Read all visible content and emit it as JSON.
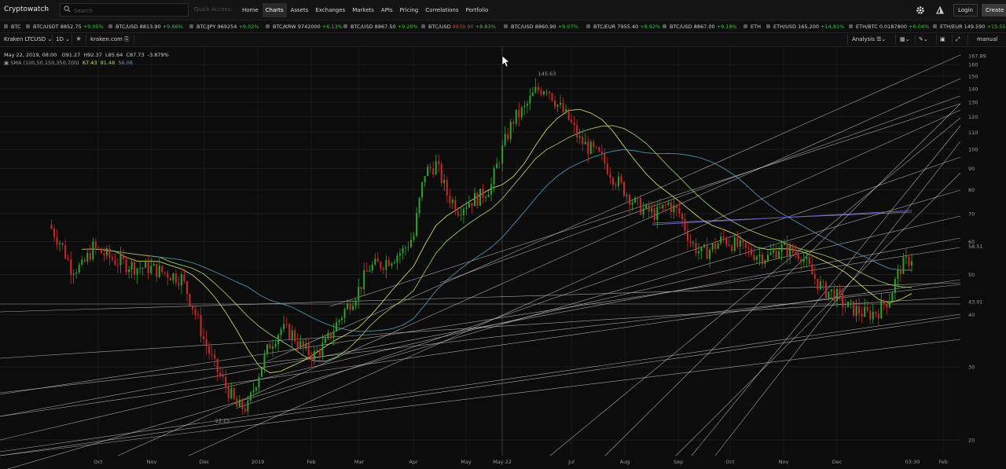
{
  "header": {
    "brand": "Cryptowatch",
    "search_placeholder": "Search",
    "quick_access_label": "Quick Access:",
    "nav": [
      "Home",
      "Charts",
      "Assets",
      "Exchanges",
      "Markets",
      "APIs",
      "Pricing",
      "Correlations",
      "Portfolio"
    ],
    "active_nav": "Charts",
    "login_label": "Login",
    "create_label": "Create"
  },
  "ticker": [
    {
      "pair": "BTC",
      "price": "",
      "change": "",
      "dir": "none"
    },
    {
      "pair": "BTC/USDT",
      "price": "8852.75",
      "change": "+9.05%",
      "dir": "up"
    },
    {
      "pair": "BTC/USD",
      "price": "8813.90",
      "change": "+9.66%",
      "dir": "up"
    },
    {
      "pair": "BTC/JPY",
      "price": "969254",
      "change": "+9.02%",
      "dir": "up"
    },
    {
      "pair": "BTC/KRW",
      "price": "9742000",
      "change": "+6.13%",
      "dir": "up"
    },
    {
      "pair": "BTC/USD",
      "price": "8867.50",
      "change": "+9.20%",
      "dir": "up"
    },
    {
      "pair": "BTC/USD",
      "price": "8839.90",
      "change": "+8.83%",
      "dir": "up",
      "price_dir": "down"
    },
    {
      "pair": "BTC/USD",
      "price": "8860.90",
      "change": "+9.07%",
      "dir": "up"
    },
    {
      "pair": "BTC/EUR",
      "price": "7955.40",
      "change": "+8.92%",
      "dir": "up"
    },
    {
      "pair": "BTC/USD",
      "price": "8867.00",
      "change": "+9.18%",
      "dir": "up"
    },
    {
      "pair": "ETH",
      "price": "",
      "change": "",
      "dir": "none"
    },
    {
      "pair": "ETH/USD",
      "price": "165.200",
      "change": "+14.81%",
      "dir": "up"
    },
    {
      "pair": "ETH/BTC",
      "price": "0.0187800",
      "change": "+6.04%",
      "dir": "up"
    },
    {
      "pair": "ETH/EUR",
      "price": "149.590",
      "change": "+15.55%",
      "dir": "up"
    }
  ],
  "chart_toolbar": {
    "market": "Kraken LTCUSD",
    "period": "1D",
    "exchange_link": "kraken.com",
    "analysis_label": "Analysis",
    "scale_mode": "manual"
  },
  "legend": {
    "date": "May 22, 2019, 08:00",
    "open": "O91.27",
    "high": "H92.37",
    "low": "L85.64",
    "close": "C87.73",
    "change": "-3.879%",
    "sma_label": "SMA (100,50,150,350,700)",
    "sma_values": [
      "67.43",
      "81.48",
      "56.06"
    ]
  },
  "colors": {
    "up_candle": "#2fa02f",
    "down_candle": "#c62a2a",
    "sma_yellow": "#e1e36c",
    "sma_green": "#a7d86c",
    "sma_blue": "#4f9fbe",
    "trendline": "#d8d8d8",
    "hline_purple": "#6a5acd"
  },
  "chart_data": {
    "type": "candlestick",
    "pair": "LTC/USD",
    "exchange": "Kraken",
    "interval": "1D",
    "scale": "log",
    "y_ticks": [
      20,
      30,
      40,
      50,
      60,
      70,
      80,
      90,
      100,
      110,
      120,
      130,
      140,
      150,
      160
    ],
    "x_ticks": [
      "Oct",
      "Nov",
      "Dec",
      "2019",
      "Feb",
      "Mar",
      "Apr",
      "May",
      "Jul",
      "Aug",
      "Sep",
      "Oct",
      "Nov",
      "Dec",
      "Feb"
    ],
    "price_labels": [
      "167.89",
      "58.51",
      "43.01"
    ],
    "crosshair_label": "May 22",
    "time_label": "03:30",
    "annotations": [
      {
        "text": "145.63",
        "value": 145.63
      },
      {
        "text": "22.25",
        "value": 22.25
      }
    ],
    "grid": true,
    "legend_position": "top-left",
    "series": [
      {
        "name": "LTCUSD candles",
        "approx_closes": [
          66,
          60,
          52,
          52,
          58,
          56,
          54,
          53,
          52,
          52,
          51,
          50,
          49,
          42,
          35,
          30,
          27,
          24,
          24,
          29,
          34,
          37,
          36,
          33,
          32,
          34,
          38,
          42,
          46,
          52,
          53,
          55,
          57,
          62,
          88,
          92,
          78,
          72,
          75,
          77,
          82,
          100,
          118,
          125,
          138,
          142,
          128,
          118,
          105,
          100,
          95,
          86,
          80,
          74,
          71,
          70,
          74,
          70,
          60,
          56,
          58,
          61,
          59,
          57,
          56,
          55,
          58,
          57,
          56,
          50,
          46,
          45,
          42,
          41,
          40,
          41,
          44,
          52,
          55
        ]
      }
    ]
  }
}
